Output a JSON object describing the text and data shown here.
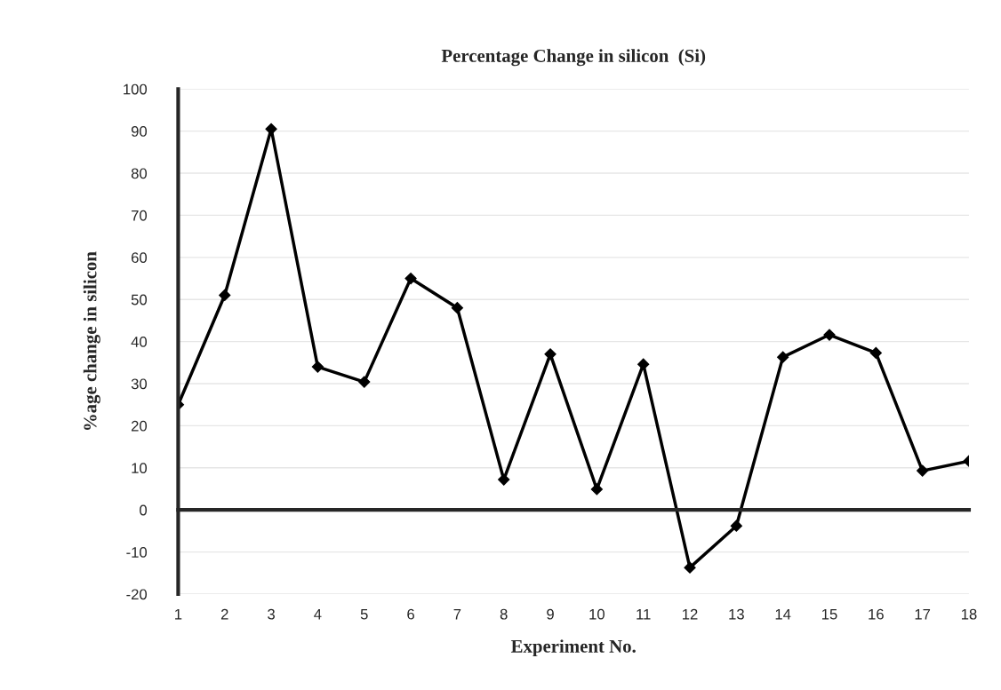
{
  "chart_data": {
    "type": "line",
    "title": "Percentage Change in silicon  (Si)",
    "xlabel": "Experiment No.",
    "ylabel": "%age change in silicon",
    "categories": [
      "1",
      "2",
      "3",
      "4",
      "5",
      "6",
      "7",
      "8",
      "9",
      "10",
      "11",
      "12",
      "13",
      "14",
      "15",
      "16",
      "17",
      "18"
    ],
    "series": [
      {
        "color": "#000000",
        "values": [
          25,
          51,
          90.5,
          34,
          30.4,
          55,
          48,
          7.2,
          37,
          4.9,
          34.6,
          -13.7,
          -3.8,
          36.3,
          41.6,
          37.3,
          9.3,
          11.6
        ]
      }
    ],
    "ylim": [
      -20,
      100
    ],
    "yticks": [
      -20,
      -10,
      0,
      10,
      20,
      30,
      40,
      50,
      60,
      70,
      80,
      90,
      100
    ],
    "grid": "y",
    "marker": "diamond",
    "line_style": "solid"
  }
}
